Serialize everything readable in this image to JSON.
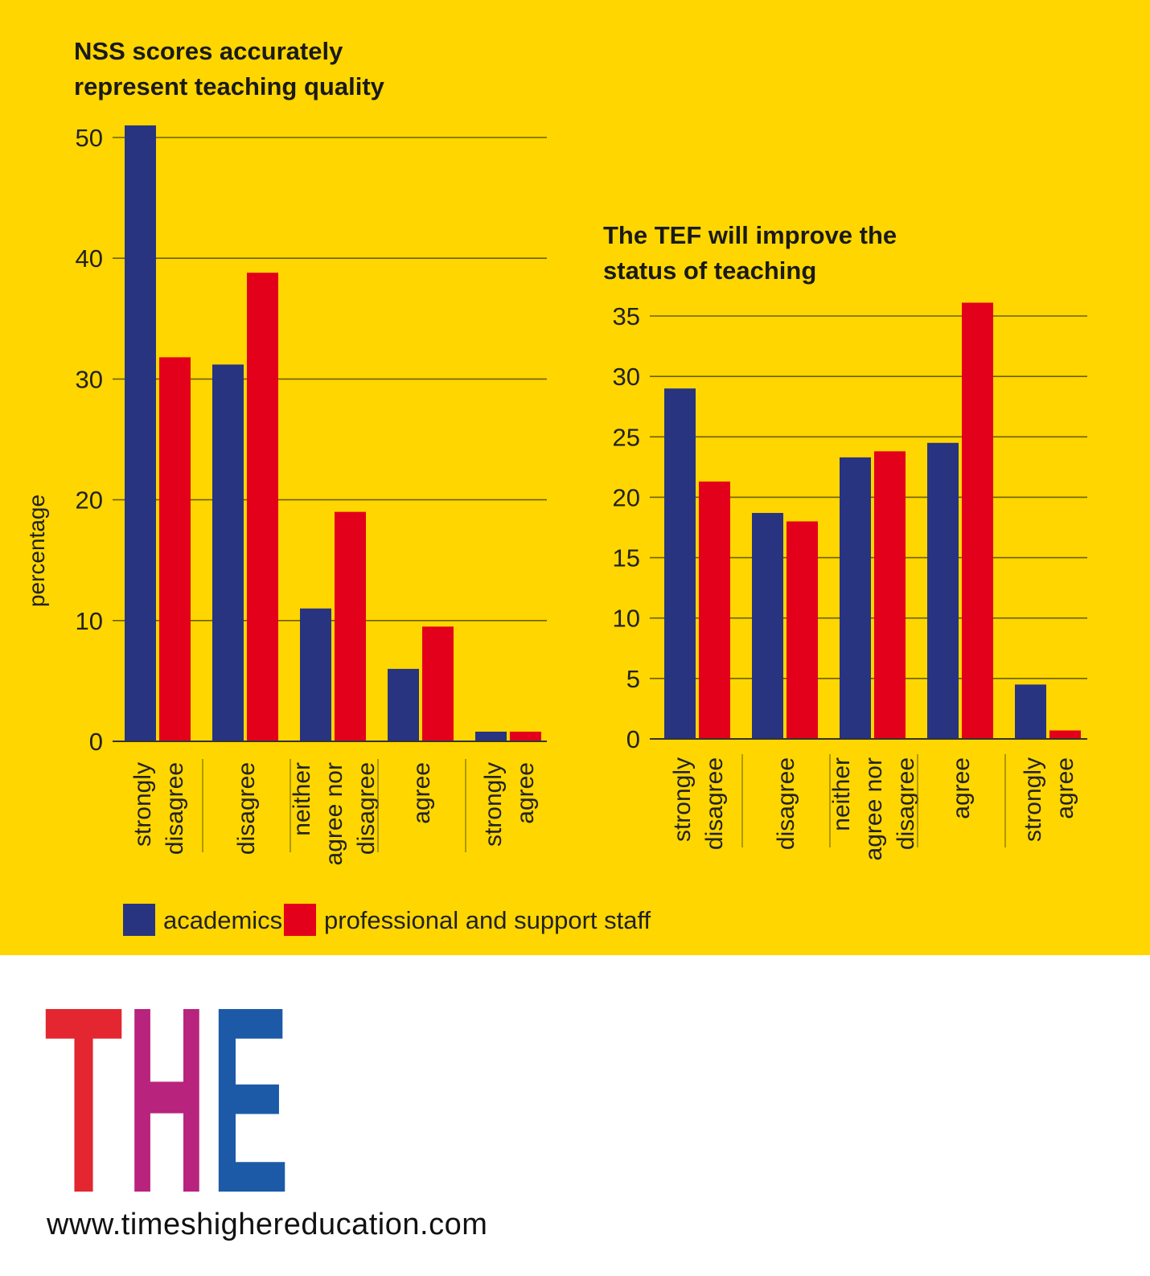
{
  "colors": {
    "background": "#FFD600",
    "academics": "#283480",
    "staff": "#E3001B",
    "grid": "#6b6000",
    "logo_t": "#E3262F",
    "logo_h": "#B8237E",
    "logo_e": "#1C5AA8"
  },
  "chart_data": [
    {
      "type": "bar",
      "title_lines": [
        "NSS scores accurately",
        "represent teaching quality"
      ],
      "ylabel": "percentage",
      "ylim": [
        0,
        52
      ],
      "yticks": [
        0,
        10,
        20,
        30,
        40,
        50
      ],
      "categories": [
        [
          "strongly",
          "disagree"
        ],
        [
          "disagree"
        ],
        [
          "neither",
          "agree nor",
          "disagree"
        ],
        [
          "agree"
        ],
        [
          "strongly",
          "agree"
        ]
      ],
      "series": [
        {
          "name": "academics",
          "values": [
            51,
            31.2,
            11,
            6,
            0.8
          ]
        },
        {
          "name": "professional and support staff",
          "values": [
            31.8,
            38.8,
            19,
            9.5,
            0.8
          ]
        }
      ]
    },
    {
      "type": "bar",
      "title_lines": [
        "The TEF will improve the",
        "status of teaching"
      ],
      "ylabel": "",
      "ylim": [
        0,
        36
      ],
      "yticks": [
        0,
        5,
        10,
        15,
        20,
        25,
        30,
        35
      ],
      "categories": [
        [
          "strongly",
          "disagree"
        ],
        [
          "disagree"
        ],
        [
          "neither",
          "agree nor",
          "disagree"
        ],
        [
          "agree"
        ],
        [
          "strongly",
          "agree"
        ]
      ],
      "series": [
        {
          "name": "academics",
          "values": [
            29,
            18.7,
            23.3,
            24.5,
            4.5
          ]
        },
        {
          "name": "professional and support staff",
          "values": [
            21.3,
            18,
            23.8,
            36.1,
            0.7
          ]
        }
      ]
    }
  ],
  "legend": {
    "items": [
      "academics",
      "professional and support staff"
    ]
  },
  "logo": {
    "letters": [
      "T",
      "H",
      "E"
    ]
  },
  "footer": {
    "url": "www.timeshighereducation.com"
  }
}
